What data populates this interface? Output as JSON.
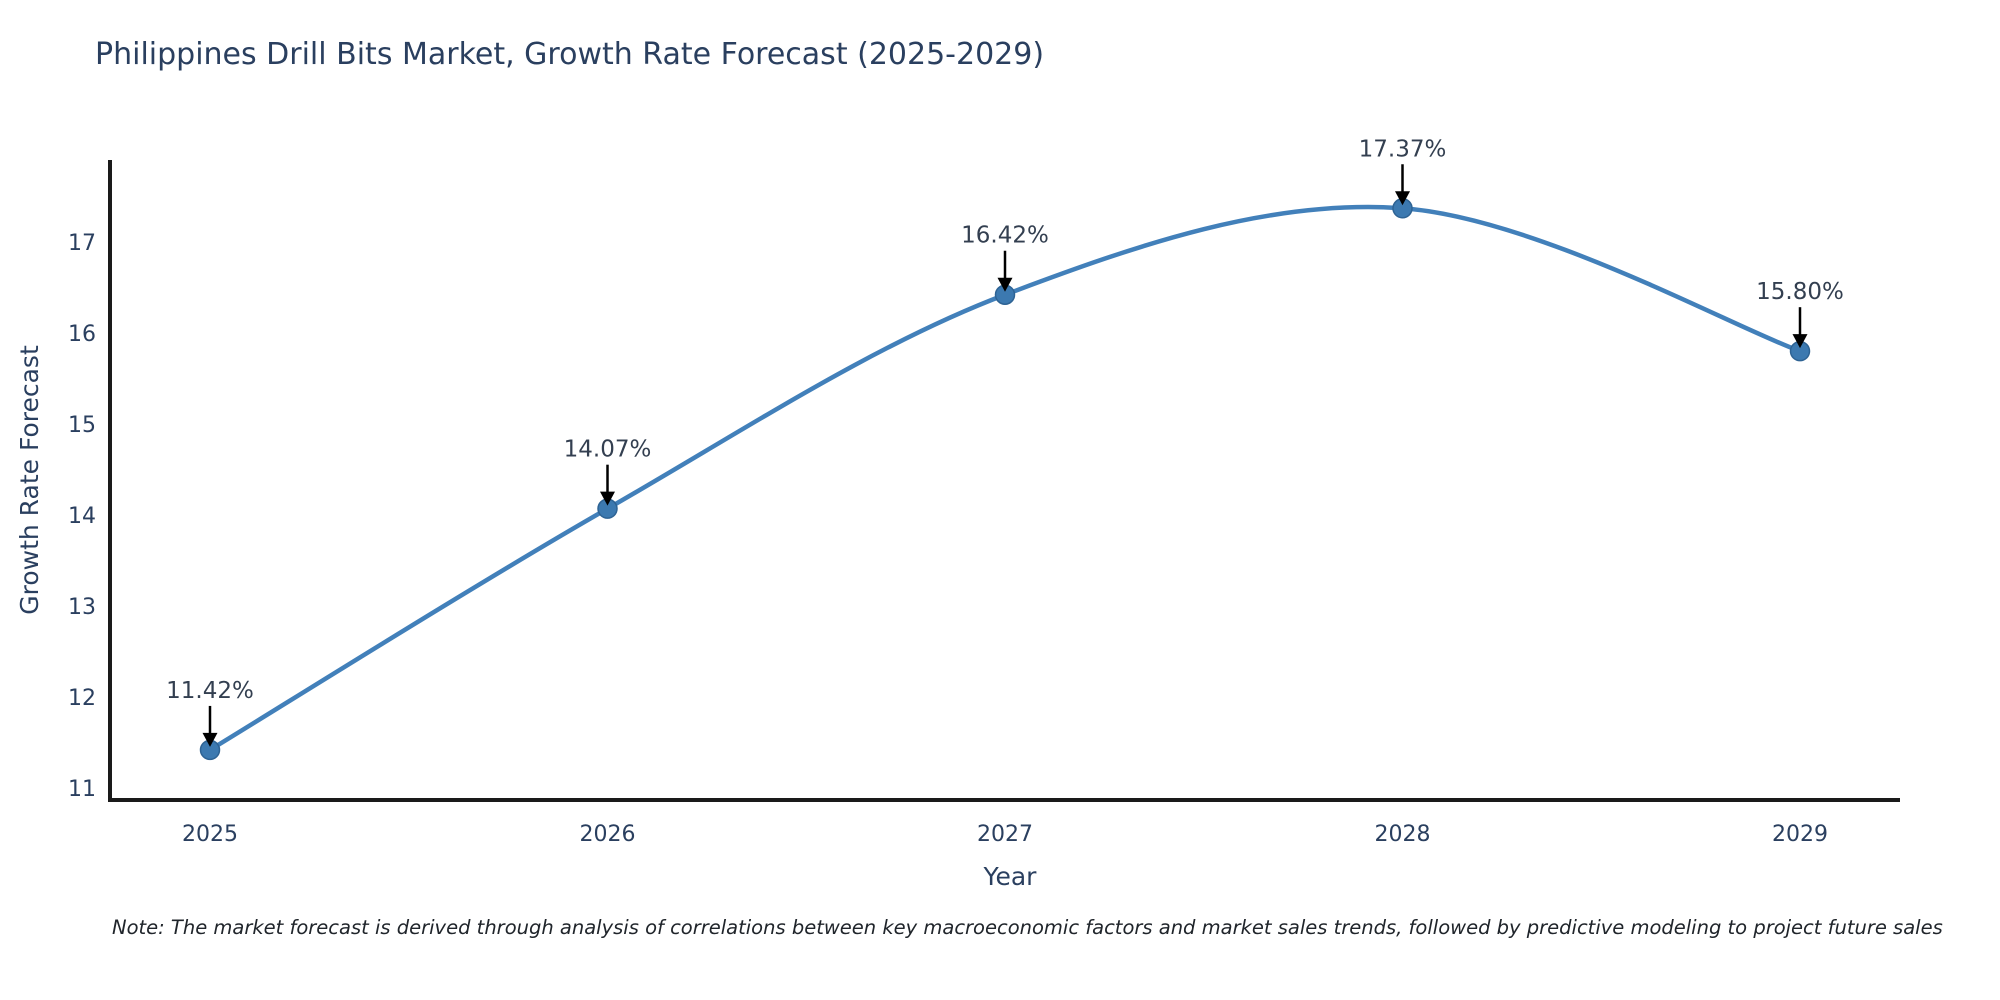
{
  "chart_data": {
    "type": "line",
    "title": "Philippines Drill Bits Market, Growth Rate Forecast (2025-2029)",
    "xlabel": "Year",
    "ylabel": "Growth Rate Forecast",
    "categories": [
      "2025",
      "2026",
      "2027",
      "2028",
      "2029"
    ],
    "series": [
      {
        "name": "Growth Rate Forecast",
        "values": [
          11.42,
          14.07,
          16.42,
          17.37,
          15.8
        ],
        "point_labels": [
          "11.42%",
          "14.07%",
          "16.42%",
          "17.37%",
          "15.80%"
        ]
      }
    ],
    "line_shape": "spline",
    "markers": true,
    "grid": false,
    "legend": "none",
    "yticks": [
      11,
      12,
      13,
      14,
      15,
      16,
      17
    ],
    "ylim": [
      10.87,
      17.9
    ],
    "colors": {
      "line": "#4280ba",
      "marker": "#3c79b0",
      "marker_edge": "#2e6394",
      "axis": "#1a1a1a",
      "tick_text": "#2a3f5f",
      "title_text": "#2a3f5f",
      "annotation_text": "#333f50",
      "arrow": "#000000"
    },
    "note": "Note: The market forecast is derived through analysis of correlations between key macroeconomic factors and market sales trends, followed by predictive modeling to project future sales"
  }
}
